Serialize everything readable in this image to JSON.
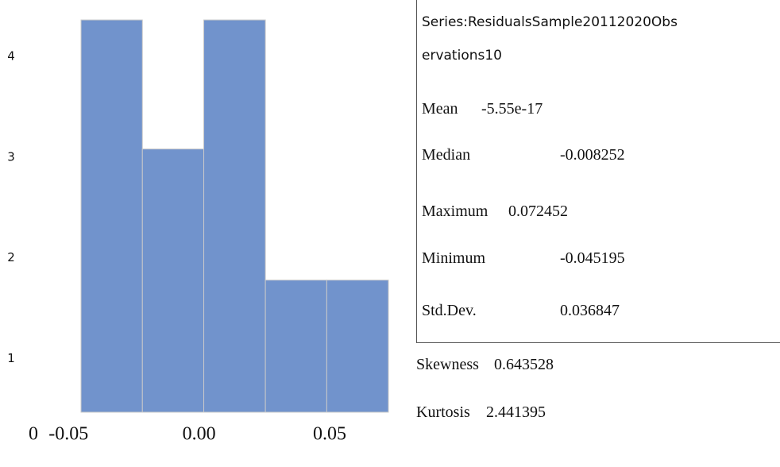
{
  "chart_data": {
    "type": "histogram",
    "bins": [
      -0.0452,
      -0.0217,
      0.0018,
      0.0254,
      0.0489,
      0.0725
    ],
    "counts": [
      4.36,
      3.08,
      4.36,
      1.78,
      1.78
    ],
    "color": "#7193cc",
    "xlim": [
      -0.0452,
      0.0725
    ],
    "xticks": [
      {
        "value": -0.05,
        "label": "-0.05"
      },
      {
        "value": 0,
        "label": "0.00"
      },
      {
        "value": 0.05,
        "label": "0.05"
      }
    ],
    "ylim": [
      0.47,
      4.4
    ],
    "yticks": [
      1,
      2,
      3,
      4
    ],
    "corner_label": "0",
    "grid": false
  },
  "stats": {
    "series_lines": [
      "Series:ResidualsSample20112020Obs",
      "ervations10"
    ],
    "items": [
      {
        "label": "Mean",
        "value": "-5.55e-17"
      },
      {
        "label": "Median",
        "value": "-0.008252"
      },
      {
        "label": "Maximum",
        "value": "0.072452"
      },
      {
        "label": "Minimum",
        "value": "-0.045195"
      },
      {
        "label": "Std.Dev.",
        "value": "0.036847"
      },
      {
        "label": "Skewness",
        "value": "0.643528"
      },
      {
        "label": "Kurtosis",
        "value": "2.441395"
      }
    ]
  }
}
